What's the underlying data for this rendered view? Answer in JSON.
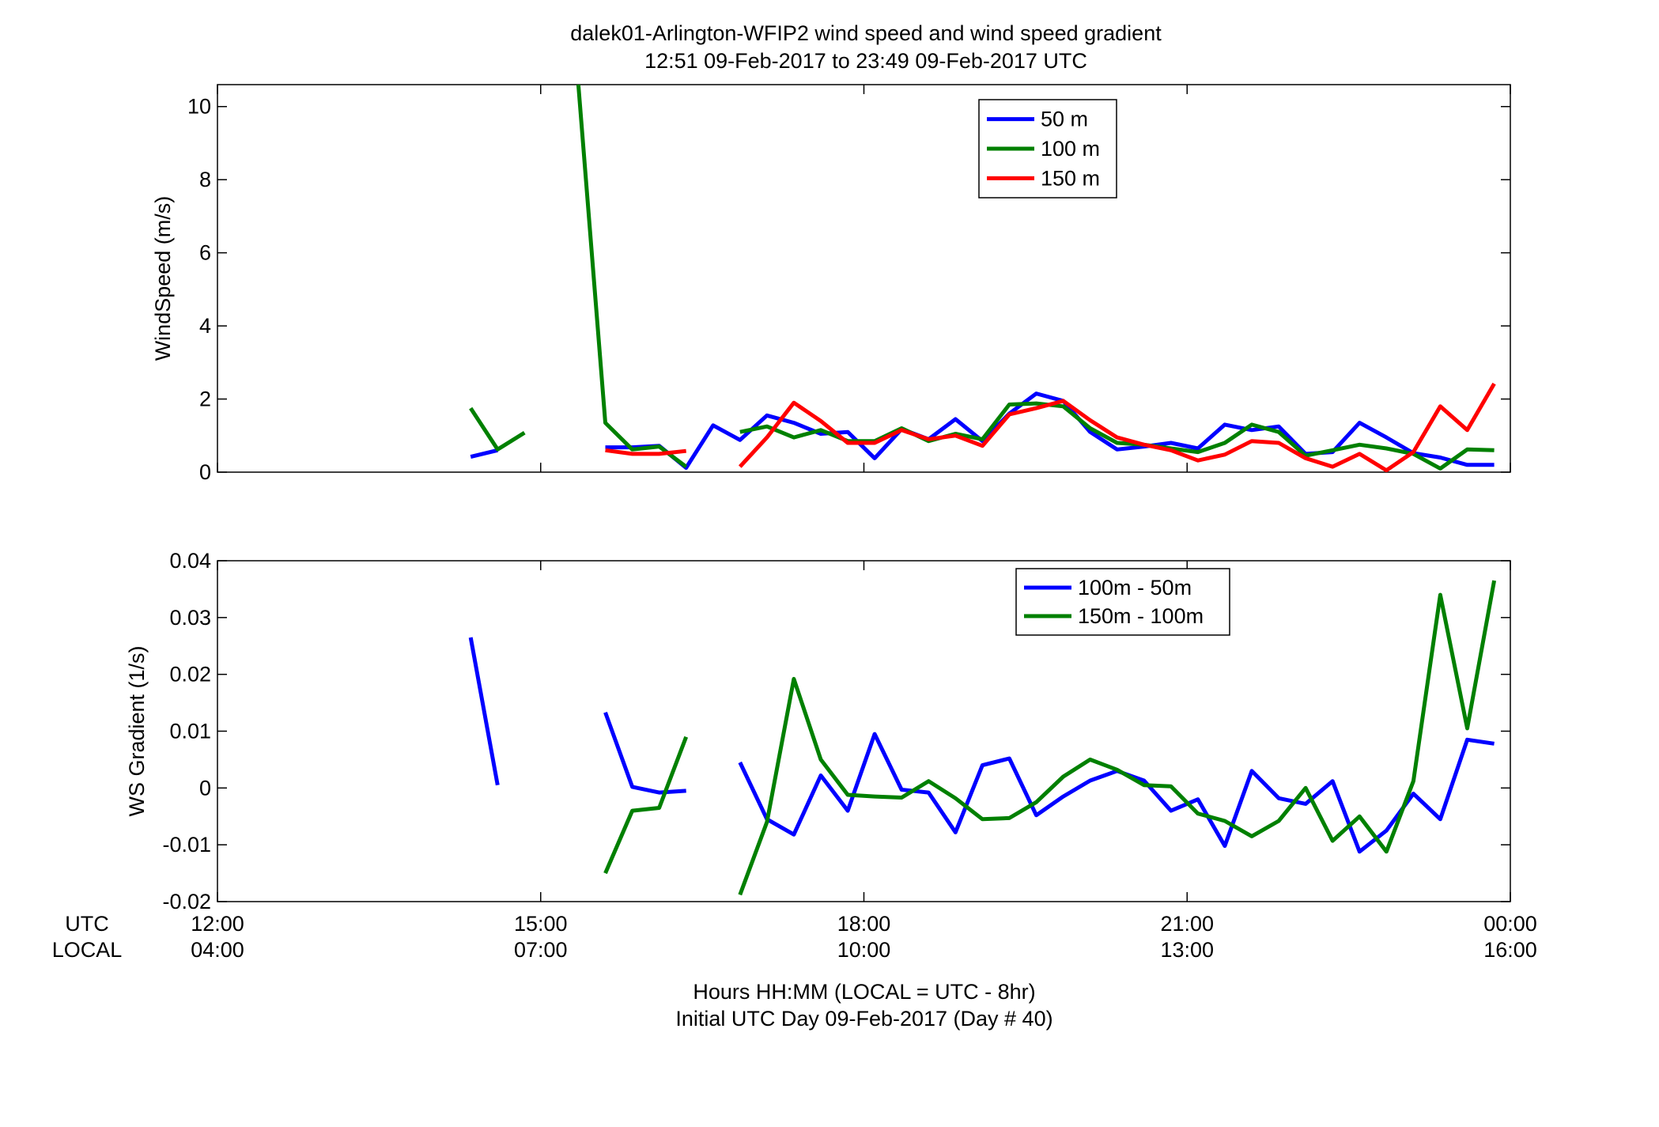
{
  "figure": {
    "title_line1": "dalek01-Arlington-WFIP2  wind speed and wind speed gradient",
    "title_line2": "12:51 09-Feb-2017 to 23:49 09-Feb-2017  UTC",
    "xaxis": {
      "utc_row_label": "UTC",
      "local_row_label": "LOCAL",
      "utc_ticks": [
        "12:00",
        "15:00",
        "18:00",
        "21:00",
        "00:00"
      ],
      "local_ticks": [
        "04:00",
        "07:00",
        "10:00",
        "13:00",
        "16:00"
      ]
    },
    "footer_line1": "Hours HH:MM  (LOCAL = UTC - 8hr)",
    "footer_line2": "Initial UTC Day 09-Feb-2017 (Day # 40)"
  },
  "chart_data": [
    {
      "type": "line",
      "ylabel": "WindSpeed (m/s)",
      "xlim": [
        12,
        24
      ],
      "ylim": [
        0,
        10.6
      ],
      "yticks": [
        0,
        2,
        4,
        6,
        8,
        10
      ],
      "legend_position": "top-right",
      "series": [
        {
          "name": "50 m",
          "color": "#0000ff",
          "segments": [
            [
              [
                14.35,
                0.42
              ],
              [
                14.6,
                0.6
              ]
            ],
            [
              [
                15.6,
                0.68
              ],
              [
                15.85,
                0.68
              ],
              [
                16.1,
                0.72
              ],
              [
                16.35,
                0.12
              ],
              [
                16.6,
                1.28
              ],
              [
                16.85,
                0.88
              ],
              [
                17.1,
                1.55
              ],
              [
                17.35,
                1.35
              ],
              [
                17.6,
                1.05
              ],
              [
                17.85,
                1.1
              ],
              [
                18.1,
                0.38
              ],
              [
                18.35,
                1.18
              ],
              [
                18.6,
                0.9
              ],
              [
                18.85,
                1.45
              ],
              [
                19.1,
                0.85
              ],
              [
                19.35,
                1.6
              ],
              [
                19.6,
                2.15
              ],
              [
                19.85,
                1.95
              ],
              [
                20.1,
                1.1
              ],
              [
                20.35,
                0.62
              ],
              [
                20.6,
                0.7
              ],
              [
                20.85,
                0.8
              ],
              [
                21.1,
                0.65
              ],
              [
                21.35,
                1.3
              ],
              [
                21.6,
                1.15
              ],
              [
                21.85,
                1.25
              ],
              [
                22.1,
                0.5
              ],
              [
                22.35,
                0.55
              ],
              [
                22.6,
                1.35
              ],
              [
                22.85,
                0.95
              ],
              [
                23.1,
                0.52
              ],
              [
                23.35,
                0.4
              ],
              [
                23.6,
                0.2
              ],
              [
                23.85,
                0.2
              ]
            ]
          ]
        },
        {
          "name": "100 m",
          "color": "#008000",
          "segments": [
            [
              [
                14.35,
                1.75
              ],
              [
                14.6,
                0.62
              ],
              [
                14.85,
                1.08
              ]
            ],
            [
              [
                15.35,
                10.6
              ],
              [
                15.6,
                1.35
              ],
              [
                15.85,
                0.62
              ],
              [
                16.1,
                0.7
              ],
              [
                16.35,
                0.15
              ]
            ],
            [
              [
                16.85,
                1.1
              ],
              [
                17.1,
                1.25
              ],
              [
                17.35,
                0.95
              ],
              [
                17.6,
                1.15
              ],
              [
                17.85,
                0.85
              ],
              [
                18.1,
                0.85
              ],
              [
                18.35,
                1.2
              ],
              [
                18.6,
                0.85
              ],
              [
                18.85,
                1.05
              ],
              [
                19.1,
                0.9
              ],
              [
                19.35,
                1.85
              ],
              [
                19.6,
                1.88
              ],
              [
                19.85,
                1.8
              ],
              [
                20.1,
                1.2
              ],
              [
                20.35,
                0.8
              ],
              [
                20.6,
                0.75
              ],
              [
                20.85,
                0.65
              ],
              [
                21.1,
                0.55
              ],
              [
                21.35,
                0.8
              ],
              [
                21.6,
                1.3
              ],
              [
                21.85,
                1.1
              ],
              [
                22.1,
                0.45
              ],
              [
                22.35,
                0.6
              ],
              [
                22.6,
                0.75
              ],
              [
                22.85,
                0.65
              ],
              [
                23.1,
                0.5
              ],
              [
                23.35,
                0.1
              ],
              [
                23.6,
                0.62
              ],
              [
                23.85,
                0.6
              ]
            ]
          ]
        },
        {
          "name": "150 m",
          "color": "#ff0000",
          "segments": [
            [
              [
                15.6,
                0.6
              ],
              [
                15.85,
                0.5
              ],
              [
                16.1,
                0.5
              ],
              [
                16.35,
                0.58
              ]
            ],
            [
              [
                16.85,
                0.15
              ],
              [
                17.1,
                0.95
              ],
              [
                17.35,
                1.9
              ],
              [
                17.6,
                1.4
              ],
              [
                17.85,
                0.8
              ],
              [
                18.1,
                0.8
              ],
              [
                18.35,
                1.15
              ],
              [
                18.6,
                0.9
              ],
              [
                18.85,
                1.0
              ],
              [
                19.1,
                0.72
              ],
              [
                19.35,
                1.58
              ],
              [
                19.6,
                1.75
              ],
              [
                19.85,
                1.95
              ],
              [
                20.1,
                1.42
              ],
              [
                20.35,
                0.95
              ],
              [
                20.6,
                0.75
              ],
              [
                20.85,
                0.6
              ],
              [
                21.1,
                0.32
              ],
              [
                21.35,
                0.48
              ],
              [
                21.6,
                0.85
              ],
              [
                21.85,
                0.8
              ],
              [
                22.1,
                0.38
              ],
              [
                22.35,
                0.15
              ],
              [
                22.6,
                0.5
              ],
              [
                22.85,
                0.05
              ],
              [
                23.1,
                0.55
              ],
              [
                23.35,
                1.8
              ],
              [
                23.6,
                1.15
              ],
              [
                23.85,
                2.42
              ]
            ]
          ]
        }
      ]
    },
    {
      "type": "line",
      "ylabel": "WS Gradient (1/s)",
      "xlim": [
        12,
        24
      ],
      "ylim": [
        -0.02,
        0.04
      ],
      "yticks": [
        -0.02,
        -0.01,
        0,
        0.01,
        0.02,
        0.03,
        0.04
      ],
      "ytick_labels": [
        "-0.02",
        "-0.01",
        "0",
        "0.01",
        "0.02",
        "0.03",
        "0.04"
      ],
      "legend_position": "top-right",
      "series": [
        {
          "name": "100m - 50m",
          "color": "#0000ff",
          "segments": [
            [
              [
                14.35,
                0.0265
              ],
              [
                14.6,
                0.0005
              ]
            ],
            [
              [
                15.6,
                0.0133
              ],
              [
                15.85,
                0.0002
              ],
              [
                16.1,
                -0.0008
              ],
              [
                16.35,
                -0.0005
              ]
            ],
            [
              [
                16.85,
                0.0045
              ],
              [
                17.1,
                -0.0055
              ],
              [
                17.35,
                -0.0082
              ],
              [
                17.6,
                0.0022
              ],
              [
                17.85,
                -0.004
              ],
              [
                18.1,
                0.0095
              ],
              [
                18.35,
                -0.0003
              ],
              [
                18.6,
                -0.0008
              ],
              [
                18.85,
                -0.0078
              ],
              [
                19.1,
                0.004
              ],
              [
                19.35,
                0.0052
              ],
              [
                19.6,
                -0.0048
              ],
              [
                19.85,
                -0.0015
              ],
              [
                20.1,
                0.0013
              ],
              [
                20.35,
                0.003
              ],
              [
                20.6,
                0.0013
              ],
              [
                20.85,
                -0.004
              ],
              [
                21.1,
                -0.002
              ],
              [
                21.35,
                -0.0102
              ],
              [
                21.6,
                0.003
              ],
              [
                21.85,
                -0.0018
              ],
              [
                22.1,
                -0.0028
              ],
              [
                22.35,
                0.0012
              ],
              [
                22.6,
                -0.0112
              ],
              [
                22.85,
                -0.0075
              ],
              [
                23.1,
                -0.001
              ],
              [
                23.35,
                -0.0055
              ],
              [
                23.6,
                0.0085
              ],
              [
                23.85,
                0.0078
              ]
            ]
          ]
        },
        {
          "name": "150m - 100m",
          "color": "#008000",
          "segments": [
            [
              [
                15.6,
                -0.015
              ],
              [
                15.85,
                -0.004
              ],
              [
                16.1,
                -0.0035
              ],
              [
                16.35,
                0.009
              ]
            ],
            [
              [
                16.85,
                -0.0188
              ],
              [
                17.1,
                -0.006
              ],
              [
                17.35,
                0.0192
              ],
              [
                17.6,
                0.005
              ],
              [
                17.85,
                -0.0012
              ],
              [
                18.1,
                -0.0015
              ],
              [
                18.35,
                -0.0017
              ],
              [
                18.6,
                0.0012
              ],
              [
                18.85,
                -0.0018
              ],
              [
                19.1,
                -0.0055
              ],
              [
                19.35,
                -0.0053
              ],
              [
                19.6,
                -0.0025
              ],
              [
                19.85,
                0.002
              ],
              [
                20.1,
                0.005
              ],
              [
                20.35,
                0.0032
              ],
              [
                20.6,
                0.0005
              ],
              [
                20.85,
                0.0003
              ],
              [
                21.1,
                -0.0045
              ],
              [
                21.35,
                -0.0058
              ],
              [
                21.6,
                -0.0085
              ],
              [
                21.85,
                -0.0058
              ],
              [
                22.1,
                0.0
              ],
              [
                22.35,
                -0.0093
              ],
              [
                22.6,
                -0.005
              ],
              [
                22.85,
                -0.0112
              ],
              [
                23.1,
                0.0012
              ],
              [
                23.35,
                0.034
              ],
              [
                23.6,
                0.0105
              ],
              [
                23.85,
                0.0365
              ]
            ]
          ]
        }
      ]
    }
  ]
}
